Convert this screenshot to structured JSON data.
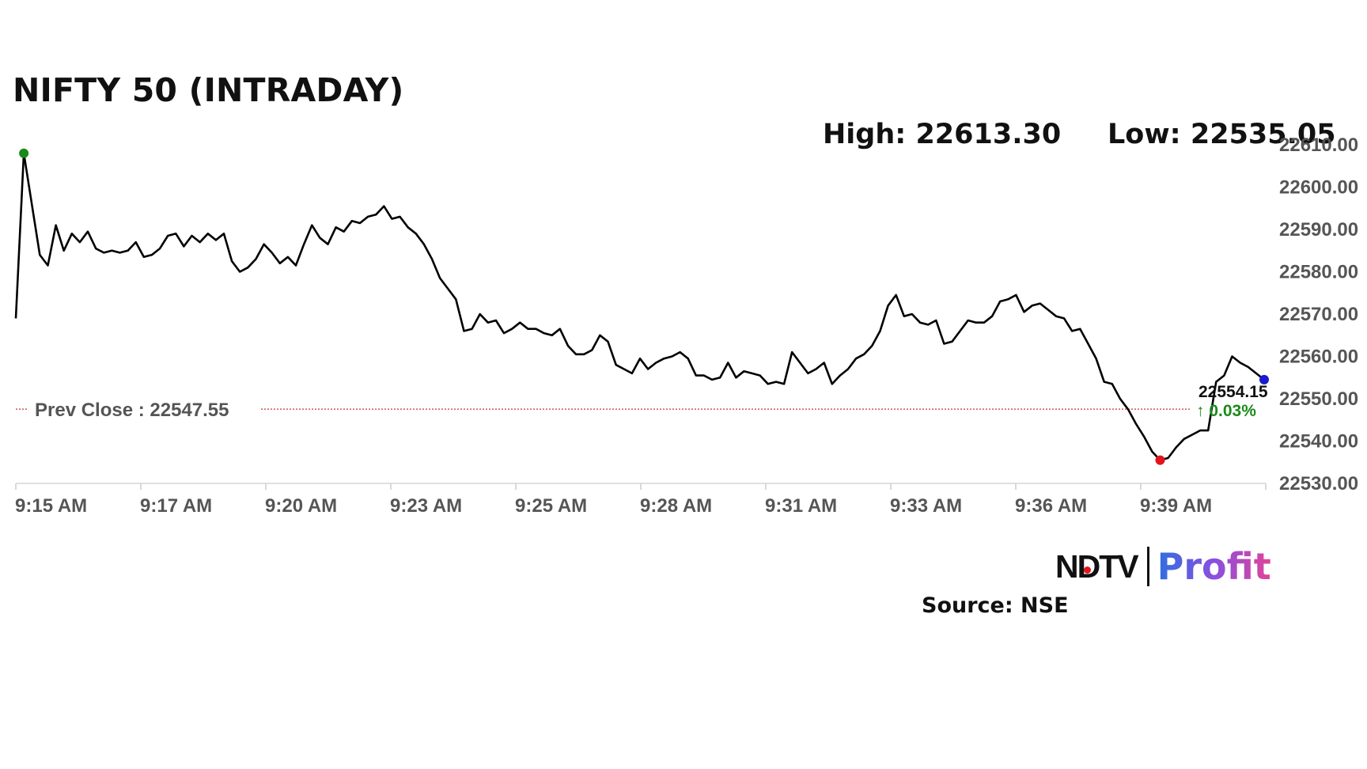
{
  "header": {
    "title": "NIFTY 50 (INTRADAY)",
    "high_label": "High: 22613.30",
    "low_label": "Low: 22535.05"
  },
  "brand": {
    "ndtv": "NDTV",
    "profit": "Profit",
    "source": "Source: NSE"
  },
  "colors": {
    "line": "#000000",
    "high_marker": "#1a8a1a",
    "low_marker": "#e3131b",
    "last_marker": "#1a1ad0",
    "prev_close_line": "#c0392b",
    "change_up": "#1a8a1a"
  },
  "chart_data": {
    "type": "line",
    "title": "NIFTY 50 (INTRADAY)",
    "x_tick_labels": [
      "9:15 AM",
      "9:17 AM",
      "9:20 AM",
      "9:23 AM",
      "9:25 AM",
      "9:28 AM",
      "9:31 AM",
      "9:33 AM",
      "9:36 AM",
      "9:39 AM"
    ],
    "y_ticks": [
      22610.0,
      22600.0,
      22590.0,
      22580.0,
      22570.0,
      22560.0,
      22550.0,
      22540.0,
      22530.0
    ],
    "y_tick_labels": [
      "22610.00",
      "22600.00",
      "22590.00",
      "22580.00",
      "22570.00",
      "22560.00",
      "22550.00",
      "22540.00",
      "22530.00"
    ],
    "ylim": [
      22530,
      22610
    ],
    "grid": false,
    "prev_close": 22547.55,
    "prev_close_label": "Prev Close : 22547.55",
    "last_value_label": "22554.15",
    "change_label": "↑ 0.03%",
    "high": 22613.3,
    "low": 22535.05,
    "series": [
      {
        "values": [
          22569.0,
          22608.0,
          22596.0,
          22584.0,
          22581.5,
          22591.0,
          22585.0,
          22589.0,
          22587.0,
          22589.5,
          22585.5,
          22584.5,
          22585.0,
          22584.5,
          22585.0,
          22587.0,
          22583.5,
          22584.0,
          22585.5,
          22588.5,
          22589.0,
          22586.0,
          22588.5,
          22587.0,
          22589.0,
          22587.5,
          22589.0,
          22582.5,
          22580.0,
          22581.0,
          22583.0,
          22586.5,
          22584.5,
          22582.0,
          22583.5,
          22581.5,
          22586.5,
          22591.0,
          22588.0,
          22586.5,
          22590.5,
          22589.5,
          22592.0,
          22591.5,
          22593.0,
          22593.5,
          22595.5,
          22592.5,
          22593.0,
          22590.5,
          22589.0,
          22586.5,
          22583.0,
          22578.5,
          22576.0,
          22573.5,
          22566.0,
          22566.5,
          22570.0,
          22568.0,
          22568.5,
          22565.5,
          22566.5,
          22568.0,
          22566.5,
          22566.5,
          22565.5,
          22565.0,
          22566.5,
          22562.5,
          22560.5,
          22560.5,
          22561.5,
          22565.0,
          22563.5,
          22558.0,
          22557.0,
          22556.0,
          22559.5,
          22557.0,
          22558.5,
          22559.5,
          22560.0,
          22561.0,
          22559.5,
          22555.5,
          22555.5,
          22554.5,
          22555.0,
          22558.5,
          22555.0,
          22556.5,
          22556.0,
          22555.5,
          22553.5,
          22554.0,
          22553.5,
          22561.0,
          22558.5,
          22556.0,
          22557.0,
          22558.5,
          22553.5,
          22555.5,
          22557.0,
          22559.5,
          22560.5,
          22562.5,
          22566.0,
          22572.0,
          22574.5,
          22569.5,
          22570.0,
          22568.0,
          22567.5,
          22568.5,
          22563.0,
          22563.5,
          22566.0,
          22568.5,
          22568.0,
          22568.0,
          22569.5,
          22573.0,
          22573.5,
          22574.5,
          22570.5,
          22572.0,
          22572.5,
          22571.0,
          22569.5,
          22569.0,
          22566.0,
          22566.5,
          22563.0,
          22559.5,
          22554.0,
          22553.5,
          22550.0,
          22547.5,
          22544.0,
          22541.0,
          22537.5,
          22535.5,
          22536.0,
          22538.5,
          22540.5,
          22541.5,
          22542.5,
          22542.5,
          22554.0,
          22555.5,
          22560.0,
          22558.5,
          22557.5,
          22556.0,
          22554.5
        ]
      }
    ]
  }
}
